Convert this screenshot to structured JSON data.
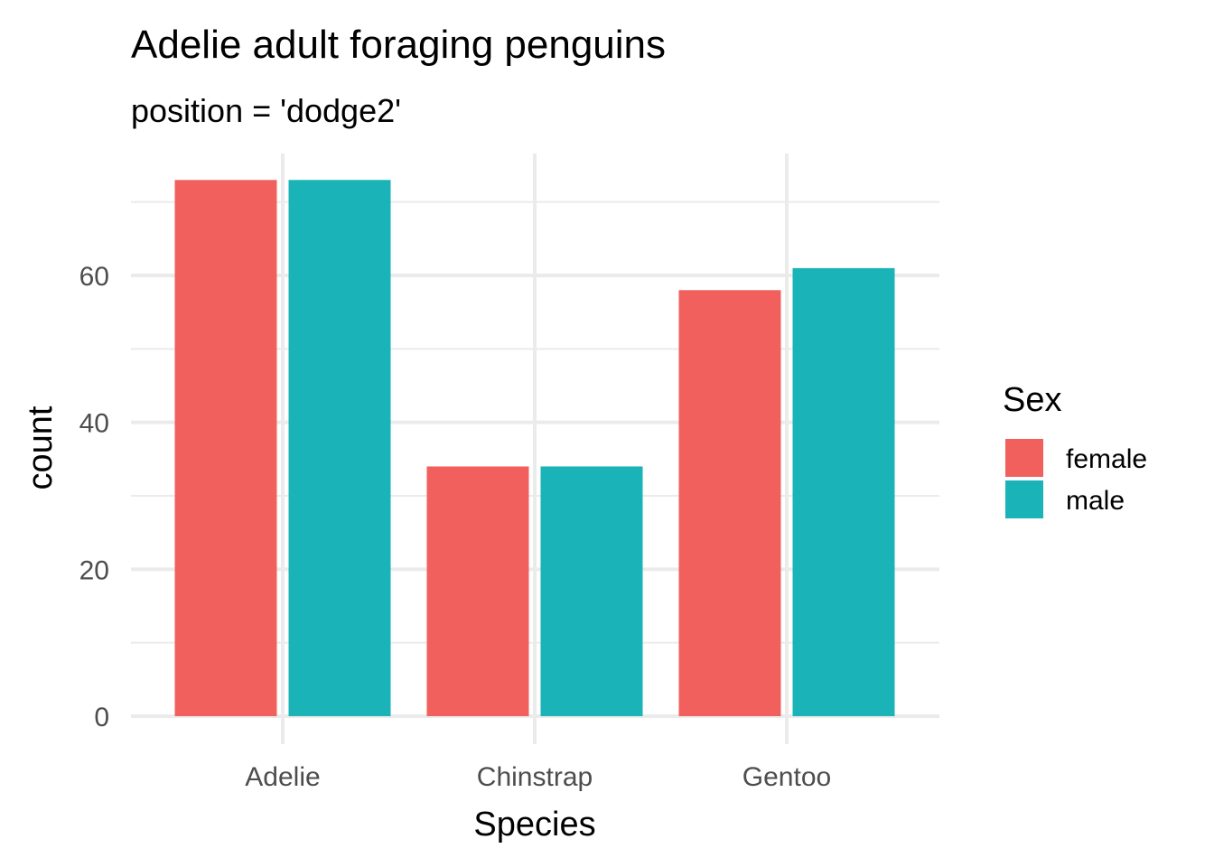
{
  "chart_data": {
    "type": "bar",
    "title": "Adelie adult foraging penguins",
    "subtitle": "position = 'dodge2'",
    "xlabel": "Species",
    "ylabel": "count",
    "categories": [
      "Adelie",
      "Chinstrap",
      "Gentoo"
    ],
    "series": [
      {
        "name": "female",
        "color": "#F2605D",
        "values": [
          73,
          34,
          58
        ]
      },
      {
        "name": "male",
        "color": "#1AB3B8",
        "values": [
          73,
          34,
          61
        ]
      }
    ],
    "ylim": [
      0,
      76
    ],
    "y_ticks": [
      0,
      20,
      40,
      60
    ],
    "grid": true,
    "legend": {
      "title": "Sex",
      "position": "right",
      "entries": [
        "female",
        "male"
      ]
    }
  }
}
